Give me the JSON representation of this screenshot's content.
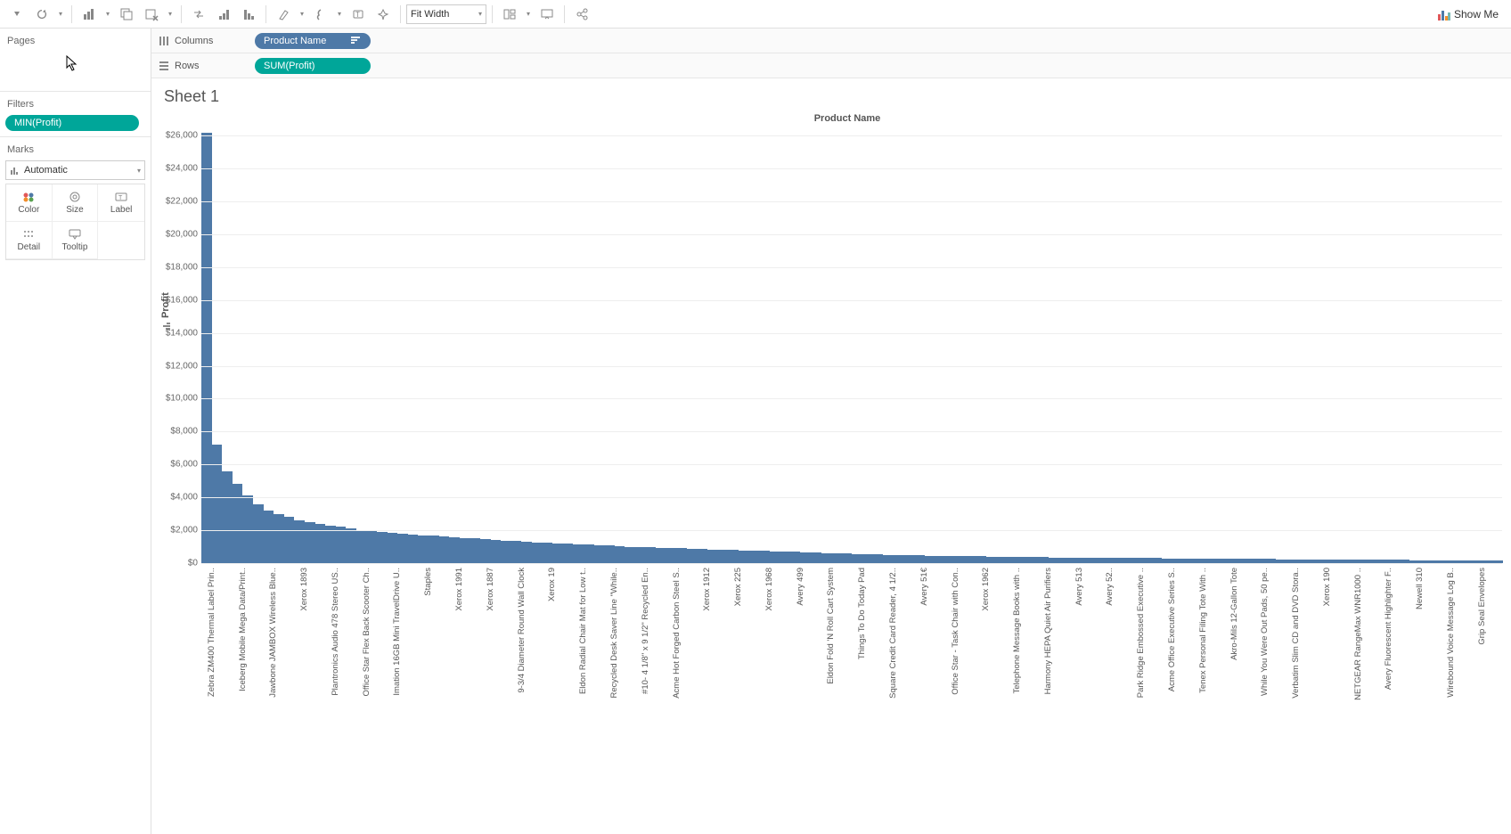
{
  "toolbar": {
    "fit_mode": "Fit Width",
    "showme_label": "Show Me"
  },
  "side": {
    "pages_title": "Pages",
    "filters_title": "Filters",
    "filter_pill": "MIN(Profit)",
    "marks_title": "Marks",
    "marks_type": "Automatic",
    "color_label": "Color",
    "size_label": "Size",
    "label_label": "Label",
    "detail_label": "Detail",
    "tooltip_label": "Tooltip"
  },
  "shelves": {
    "columns_label": "Columns",
    "rows_label": "Rows",
    "column_pill": "Product Name",
    "row_pill": "SUM(Profit)"
  },
  "sheet": {
    "title": "Sheet 1",
    "x_axis_header": "Product Name",
    "y_axis_label": "Profit"
  },
  "chart": {
    "type": "bar",
    "bar_color": "#4e79a7",
    "grid_color": "#eeeeee",
    "background_color": "#ffffff",
    "y_max": 26500,
    "y_ticks": [
      {
        "v": 0,
        "label": "$0"
      },
      {
        "v": 2000,
        "label": "$2,000"
      },
      {
        "v": 4000,
        "label": "$4,000"
      },
      {
        "v": 6000,
        "label": "$6,000"
      },
      {
        "v": 8000,
        "label": "$8,000"
      },
      {
        "v": 10000,
        "label": "$10,000"
      },
      {
        "v": 12000,
        "label": "$12,000"
      },
      {
        "v": 14000,
        "label": "$14,000"
      },
      {
        "v": 16000,
        "label": "$16,000"
      },
      {
        "v": 18000,
        "label": "$18,000"
      },
      {
        "v": 20000,
        "label": "$20,000"
      },
      {
        "v": 22000,
        "label": "$22,000"
      },
      {
        "v": 24000,
        "label": "$24,000"
      },
      {
        "v": 26000,
        "label": "$26,000"
      }
    ],
    "x_labels_visible": [
      {
        "idx": 0,
        "text": "Zebra ZM400 Thermal Label Prin.."
      },
      {
        "idx": 3,
        "text": "Iceberg Mobile Mega Data/Print.."
      },
      {
        "idx": 6,
        "text": "Jawbone JAMBOX Wireless Blue.."
      },
      {
        "idx": 9,
        "text": "Xerox 1893"
      },
      {
        "idx": 12,
        "text": "Plantronics Audio 478 Stereo US.."
      },
      {
        "idx": 15,
        "text": "Office Star Flex Back Scooter Ch.."
      },
      {
        "idx": 18,
        "text": "Imation 16GB Mini TravelDrive U.."
      },
      {
        "idx": 21,
        "text": "Staples"
      },
      {
        "idx": 24,
        "text": "Xerox 1991"
      },
      {
        "idx": 27,
        "text": "Xerox 1887"
      },
      {
        "idx": 30,
        "text": "9-3/4 Diameter Round Wall Clock"
      },
      {
        "idx": 33,
        "text": "Xerox 19"
      },
      {
        "idx": 36,
        "text": "Eldon Radial Chair Mat for Low t.."
      },
      {
        "idx": 39,
        "text": "Recycled Desk Saver Line \"While.."
      },
      {
        "idx": 42,
        "text": "#10- 4 1/8\" x 9 1/2\" Recycled En.."
      },
      {
        "idx": 45,
        "text": "Acme Hot Forged Carbon Steel S.."
      },
      {
        "idx": 48,
        "text": "Xerox 1912"
      },
      {
        "idx": 51,
        "text": "Xerox 225"
      },
      {
        "idx": 54,
        "text": "Xerox 1968"
      },
      {
        "idx": 57,
        "text": "Avery 499"
      },
      {
        "idx": 60,
        "text": "Eldon Fold 'N Roll Cart System"
      },
      {
        "idx": 63,
        "text": "Things To Do Today Pad"
      },
      {
        "idx": 66,
        "text": "Square Credit Card Reader, 4 1/2.."
      },
      {
        "idx": 69,
        "text": "Avery 51€"
      },
      {
        "idx": 72,
        "text": "Office Star - Task Chair with Con.."
      },
      {
        "idx": 75,
        "text": "Xerox 1962"
      },
      {
        "idx": 78,
        "text": "Telephone Message Books with .."
      },
      {
        "idx": 81,
        "text": "Harmony HEPA Quiet Air Purifiers"
      },
      {
        "idx": 84,
        "text": "Avery 513"
      },
      {
        "idx": 87,
        "text": "Avery 52.."
      },
      {
        "idx": 90,
        "text": "Park Ridge Embossed Executive .."
      },
      {
        "idx": 93,
        "text": "Acme Office Executive Series S.."
      },
      {
        "idx": 96,
        "text": "Tenex Personal Filing Tote With .."
      },
      {
        "idx": 99,
        "text": "Akro-Mils 12-Gallon Tote"
      },
      {
        "idx": 102,
        "text": "While You Were Out Pads, 50 pe.."
      },
      {
        "idx": 105,
        "text": "Verbatim Slim CD and DVD Stora.."
      },
      {
        "idx": 108,
        "text": "Xerox 190"
      },
      {
        "idx": 111,
        "text": "NETGEAR RangeMax WNR1000 .."
      },
      {
        "idx": 114,
        "text": "Avery Fluorescent Highlighter F.."
      },
      {
        "idx": 117,
        "text": "Newell 310"
      },
      {
        "idx": 120,
        "text": "Wirebound Voice Message Log B.."
      },
      {
        "idx": 123,
        "text": "Grip Seal Envelopes"
      }
    ],
    "bars": [
      26200,
      7200,
      5600,
      4800,
      4100,
      3600,
      3200,
      3000,
      2800,
      2600,
      2500,
      2400,
      2300,
      2200,
      2100,
      2000,
      1950,
      1900,
      1850,
      1800,
      1750,
      1700,
      1660,
      1620,
      1580,
      1540,
      1500,
      1460,
      1420,
      1380,
      1340,
      1300,
      1270,
      1240,
      1210,
      1180,
      1150,
      1120,
      1090,
      1060,
      1030,
      1000,
      980,
      960,
      940,
      920,
      900,
      880,
      860,
      840,
      820,
      800,
      780,
      760,
      740,
      720,
      700,
      680,
      660,
      640,
      620,
      600,
      580,
      560,
      540,
      520,
      500,
      490,
      480,
      470,
      460,
      450,
      440,
      430,
      420,
      410,
      400,
      390,
      380,
      370,
      360,
      355,
      350,
      345,
      340,
      335,
      330,
      325,
      320,
      315,
      310,
      305,
      300,
      295,
      290,
      285,
      280,
      275,
      270,
      265,
      260,
      255,
      250,
      245,
      240,
      235,
      230,
      225,
      220,
      215,
      210,
      205,
      200,
      198,
      196,
      194,
      192,
      190,
      188,
      186,
      184,
      182,
      180,
      178,
      176,
      174
    ]
  }
}
